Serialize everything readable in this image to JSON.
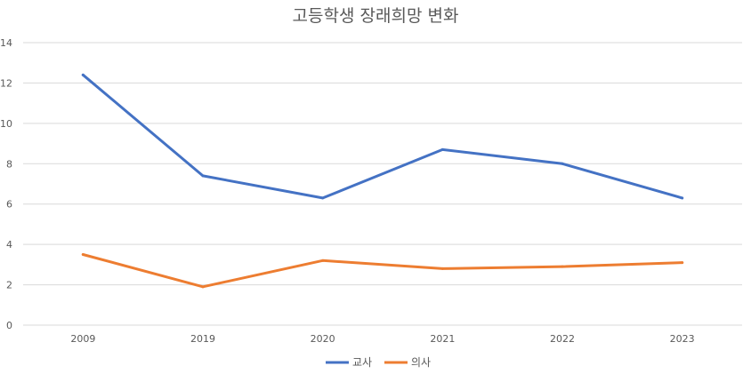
{
  "chart_data": {
    "type": "line",
    "title": "고등학생 장래희망 변화",
    "categories": [
      "2009",
      "2019",
      "2020",
      "2021",
      "2022",
      "2023"
    ],
    "series": [
      {
        "name": "교사",
        "values": [
          12.4,
          7.4,
          6.3,
          8.7,
          8.0,
          6.3
        ],
        "color": "#4472c4"
      },
      {
        "name": "의사",
        "values": [
          3.5,
          1.9,
          3.2,
          2.8,
          2.9,
          3.1
        ],
        "color": "#ed7d31"
      }
    ],
    "xlabel": "",
    "ylabel": "",
    "ylim": [
      0,
      14
    ],
    "yticks": [
      "0",
      "2",
      "4",
      "6",
      "8",
      "10",
      "12",
      "14"
    ],
    "grid": true,
    "legend_position": "bottom"
  }
}
